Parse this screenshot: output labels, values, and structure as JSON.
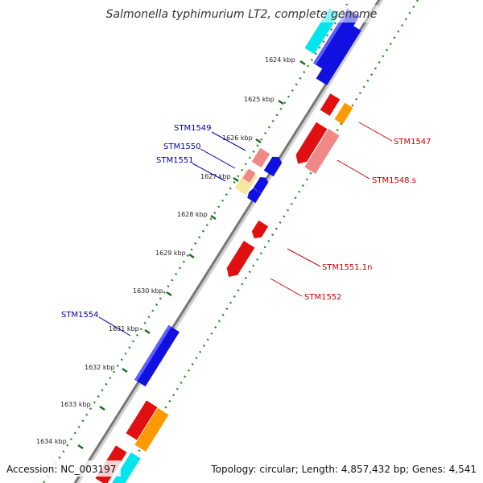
{
  "header": {
    "title": "Salmonella typhimurium LT2, complete genome"
  },
  "footer": {
    "accession": "Accession: NC_003197",
    "topology": "Topology: circular; Length: 4,857,432 bp; Genes: 4,541"
  },
  "axis": {
    "ticks": [
      "1624 kbp",
      "1625 kbp",
      "1626 kbp",
      "1627 kbp",
      "1628 kbp",
      "1629 kbp",
      "1630 kbp",
      "1631 kbp",
      "1632 kbp",
      "1633 kbp",
      "1634 kbp"
    ]
  },
  "genes": {
    "STM1549": "STM1549",
    "STM1550": "STM1550",
    "STM1551": "STM1551",
    "STM1554": "STM1554",
    "STM1547": "STM1547",
    "STM1548s": "STM1548.s",
    "STM15511n": "STM1551.1n",
    "STM1552": "STM1552"
  },
  "colors": {
    "backbone": "#777777",
    "tick_dots": "#2e8b2e",
    "cds_blue": "#1010e0",
    "cds_red": "#e01010",
    "cds_pink": "#f08888",
    "orange": "#ff9900",
    "cyan": "#00e5ee",
    "yellow": "#f5e6a0",
    "label_left": "#0000aa",
    "label_right": "#cc0000"
  }
}
